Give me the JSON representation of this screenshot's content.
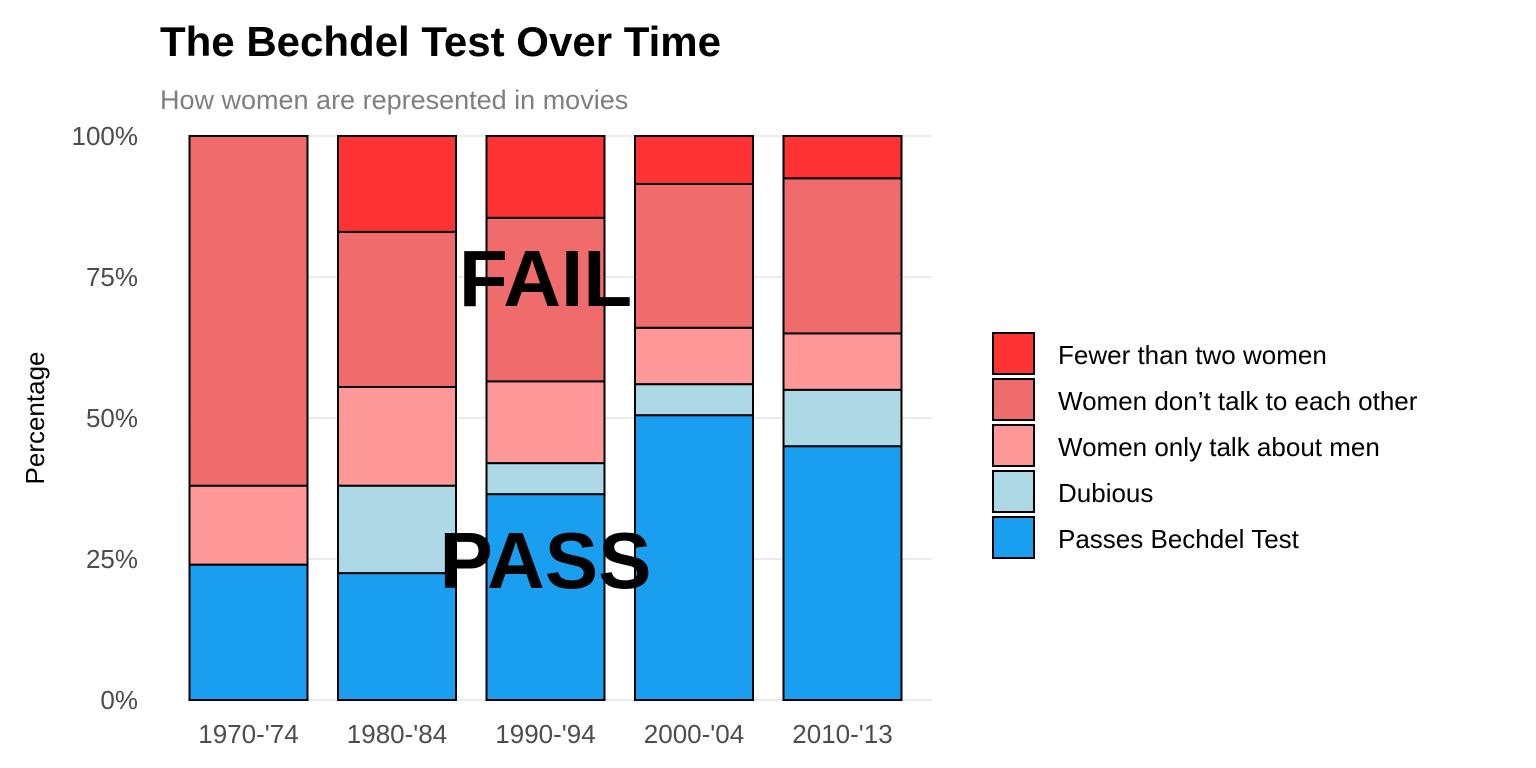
{
  "title": "The Bechdel Test Over Time",
  "subtitle": "How women are represented in movies",
  "chart_data": {
    "type": "bar",
    "stacked": true,
    "title": "The Bechdel Test Over Time",
    "subtitle": "How women are represented in movies",
    "xlabel": "",
    "ylabel": "Percentage",
    "ylim": [
      0,
      100
    ],
    "y_ticks": [
      "0%",
      "25%",
      "50%",
      "75%",
      "100%"
    ],
    "grid": true,
    "legend_position": "right",
    "categories": [
      "1970-'74",
      "1980-'84",
      "1990-'94",
      "2000-'04",
      "2010-'13"
    ],
    "series": [
      {
        "name": "Passes Bechdel Test",
        "color": "#1a9ff0",
        "values": [
          24,
          22.5,
          36.5,
          50.5,
          45
        ]
      },
      {
        "name": "Dubious",
        "color": "#add8e6",
        "values": [
          0,
          15.5,
          5.5,
          5.5,
          10
        ]
      },
      {
        "name": "Women only talk about men",
        "color": "#ff9999",
        "values": [
          14,
          17.5,
          14.5,
          10,
          10
        ]
      },
      {
        "name": "Women don’t talk to each other",
        "color": "#f06b6b",
        "values": [
          62,
          27.5,
          29,
          25.5,
          27.5
        ]
      },
      {
        "name": "Fewer than two women",
        "color": "#ff3333",
        "values": [
          0,
          17,
          14.5,
          8.5,
          7.5
        ]
      }
    ],
    "legend_order": [
      "Fewer than two women",
      "Women don’t talk to each other",
      "Women only talk about men",
      "Dubious",
      "Passes Bechdel Test"
    ],
    "annotations": [
      {
        "text": "FAIL",
        "x": 2,
        "y": 75
      },
      {
        "text": "PASS",
        "x": 2,
        "y": 25
      }
    ]
  }
}
